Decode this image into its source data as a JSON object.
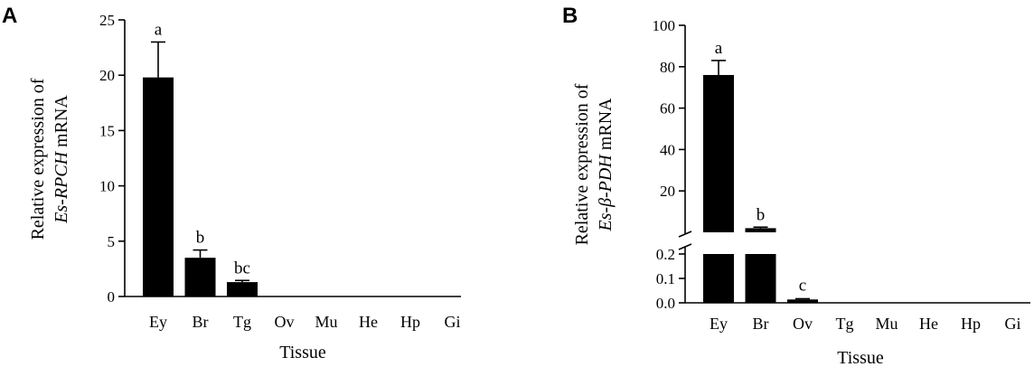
{
  "chart_data": [
    {
      "panel": "A",
      "type": "bar",
      "categories": [
        "Ey",
        "Br",
        "Tg",
        "Ov",
        "Mu",
        "He",
        "Hp",
        "Gi"
      ],
      "values": [
        19.8,
        3.5,
        1.3,
        0,
        0,
        0,
        0,
        0
      ],
      "errors": [
        3.2,
        0.7,
        0.15,
        0,
        0,
        0,
        0,
        0
      ],
      "significance": [
        "a",
        "b",
        "bc",
        "",
        "",
        "",
        "",
        ""
      ],
      "xlabel": "Tissue",
      "ylabel_line1": "Relative expression of",
      "ylabel_italic": "Es-RPCH",
      "ylabel_rest": " mRNA",
      "ylim": [
        0,
        25
      ],
      "yticks": [
        "0",
        "5",
        "10",
        "15",
        "20",
        "25"
      ],
      "color": "#000000"
    },
    {
      "panel": "B",
      "type": "bar",
      "categories": [
        "Ey",
        "Br",
        "Ov",
        "Tg",
        "Mu",
        "He",
        "Hp",
        "Gi"
      ],
      "values": [
        76,
        2,
        0.01,
        0,
        0,
        0,
        0,
        0
      ],
      "errors": [
        7,
        0.5,
        0.003,
        0,
        0,
        0,
        0,
        0
      ],
      "significance": [
        "a",
        "b",
        "c",
        "",
        "",
        "",
        "",
        ""
      ],
      "xlabel": "Tissue",
      "ylabel_line1": "Relative expression of",
      "ylabel_italic": "Es-β-PDH",
      "ylabel_rest": " mRNA",
      "broken_axis": true,
      "lower_ylim": [
        0,
        0.2
      ],
      "lower_yticks": [
        "0.0",
        "0.1",
        "0.2"
      ],
      "upper_yticks": [
        "20",
        "40",
        "60",
        "80",
        "100"
      ],
      "upper_ylim": [
        0,
        100
      ],
      "color": "#000000"
    }
  ]
}
